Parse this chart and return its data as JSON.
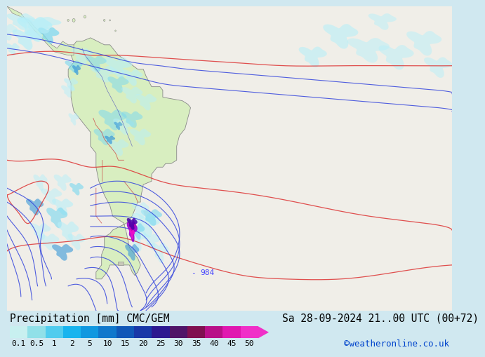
{
  "title_left": "Precipitation [mm] CMC/GEM",
  "title_right": "Sa 28-09-2024 21..00 UTC (00+72)",
  "credit": "©weatheronline.co.uk",
  "colorbar_colors": [
    "#c8f0f0",
    "#90e0e8",
    "#50ccee",
    "#18b4ee",
    "#1098e0",
    "#1078cc",
    "#1058b8",
    "#1838a8",
    "#2c1890",
    "#501468",
    "#801050",
    "#b81088",
    "#e018b0",
    "#f030c8"
  ],
  "tick_labels": [
    "0.1",
    "0.5",
    "1",
    "2",
    "5",
    "10",
    "15",
    "20",
    "25",
    "30",
    "35",
    "40",
    "45",
    "50"
  ],
  "map_bg": "#f0eee8",
  "ocean_color": "#f0eee8",
  "land_color": "#d8eec0",
  "legend_bg": "#d0e8f0",
  "precip_light": "#b0eef0",
  "precip_mid": "#50c8f0",
  "precip_dark": "#1060c0",
  "contour_blue": "#3344dd",
  "contour_red": "#dd3333",
  "font_size_title": 10.5,
  "font_size_credit": 9,
  "font_size_tick": 8,
  "font_size_label": 8
}
